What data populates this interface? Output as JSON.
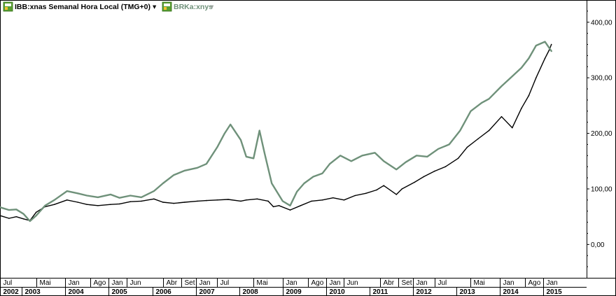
{
  "legend": {
    "primary": {
      "label": "IBB:xnas Semanal Hora Local (TMG+0)",
      "color": "#000000",
      "icon": "instrument-icon",
      "dropdown": "▾"
    },
    "secondary": {
      "label": "BRKa:xnys",
      "color": "#6f917a",
      "icon": "instrument-icon",
      "dropdown": "▾"
    }
  },
  "chart_data": {
    "type": "line",
    "x_unit": "date",
    "xlim": [
      "2002-07-01",
      "2015-12-31"
    ],
    "ylim": [
      -60,
      440
    ],
    "y_ticks": [
      0,
      100,
      200,
      300,
      400
    ],
    "y_tick_labels": [
      "0,00",
      "100,00",
      "200,00",
      "300,00",
      "400,00"
    ],
    "grid": false,
    "legend_position": "top-left",
    "x_month_labels": [
      {
        "label": "Jul",
        "date": "2002-07-01"
      },
      {
        "label": "Mai",
        "date": "2003-05-01"
      },
      {
        "label": "Jan",
        "date": "2004-01-01"
      },
      {
        "label": "Ago",
        "date": "2004-08-01"
      },
      {
        "label": "Jan",
        "date": "2005-01-01"
      },
      {
        "label": "Jun",
        "date": "2005-06-01"
      },
      {
        "label": "Abr",
        "date": "2006-04-01"
      },
      {
        "label": "Set",
        "date": "2006-09-01"
      },
      {
        "label": "Jan",
        "date": "2007-01-01"
      },
      {
        "label": "Jul",
        "date": "2007-07-01"
      },
      {
        "label": "Mai",
        "date": "2008-05-01"
      },
      {
        "label": "Jan",
        "date": "2009-01-01"
      },
      {
        "label": "Ago",
        "date": "2009-08-01"
      },
      {
        "label": "Jan",
        "date": "2010-01-01"
      },
      {
        "label": "Jun",
        "date": "2010-06-01"
      },
      {
        "label": "Abr",
        "date": "2011-04-01"
      },
      {
        "label": "Set",
        "date": "2011-09-01"
      },
      {
        "label": "Jan",
        "date": "2012-01-01"
      },
      {
        "label": "Jul",
        "date": "2012-07-01"
      },
      {
        "label": "Mai",
        "date": "2013-05-01"
      },
      {
        "label": "Jan",
        "date": "2014-01-01"
      },
      {
        "label": "Ago",
        "date": "2014-08-01"
      },
      {
        "label": "Jan",
        "date": "2015-01-01"
      }
    ],
    "x_year_labels": [
      {
        "label": "2002",
        "date": "2002-07-01"
      },
      {
        "label": "2003",
        "date": "2003-01-01"
      },
      {
        "label": "2004",
        "date": "2004-01-01"
      },
      {
        "label": "2005",
        "date": "2005-01-01"
      },
      {
        "label": "2006",
        "date": "2006-01-01"
      },
      {
        "label": "2007",
        "date": "2007-01-01"
      },
      {
        "label": "2008",
        "date": "2008-01-01"
      },
      {
        "label": "2009",
        "date": "2009-01-01"
      },
      {
        "label": "2010",
        "date": "2010-01-01"
      },
      {
        "label": "2011",
        "date": "2011-01-01"
      },
      {
        "label": "2012",
        "date": "2012-01-01"
      },
      {
        "label": "2013",
        "date": "2013-01-01"
      },
      {
        "label": "2014",
        "date": "2014-01-01"
      },
      {
        "label": "2015",
        "date": "2015-01-01"
      }
    ],
    "series": [
      {
        "name": "IBB:xnas Semanal Hora Local (TMG+0)",
        "color": "#000000",
        "points": [
          [
            "2002-07-01",
            52
          ],
          [
            "2002-09-15",
            47
          ],
          [
            "2002-11-15",
            50
          ],
          [
            "2003-01-15",
            46
          ],
          [
            "2003-03-10",
            43
          ],
          [
            "2003-05-01",
            58
          ],
          [
            "2003-07-15",
            68
          ],
          [
            "2003-10-01",
            72
          ],
          [
            "2004-01-15",
            80
          ],
          [
            "2004-04-15",
            76
          ],
          [
            "2004-07-01",
            72
          ],
          [
            "2004-10-01",
            70
          ],
          [
            "2005-01-15",
            72
          ],
          [
            "2005-04-01",
            73
          ],
          [
            "2005-07-01",
            77
          ],
          [
            "2005-10-01",
            78
          ],
          [
            "2006-01-15",
            82
          ],
          [
            "2006-04-01",
            76
          ],
          [
            "2006-07-01",
            74
          ],
          [
            "2006-10-01",
            76
          ],
          [
            "2007-01-15",
            78
          ],
          [
            "2007-04-01",
            79
          ],
          [
            "2007-07-01",
            80
          ],
          [
            "2007-10-01",
            81
          ],
          [
            "2008-01-15",
            78
          ],
          [
            "2008-03-01",
            80
          ],
          [
            "2008-06-01",
            82
          ],
          [
            "2008-09-01",
            78
          ],
          [
            "2008-10-15",
            68
          ],
          [
            "2008-12-01",
            70
          ],
          [
            "2009-03-05",
            62
          ],
          [
            "2009-06-01",
            70
          ],
          [
            "2009-09-01",
            78
          ],
          [
            "2009-12-01",
            80
          ],
          [
            "2010-03-01",
            84
          ],
          [
            "2010-06-01",
            80
          ],
          [
            "2010-09-01",
            88
          ],
          [
            "2010-12-01",
            92
          ],
          [
            "2011-03-01",
            98
          ],
          [
            "2011-05-01",
            106
          ],
          [
            "2011-08-15",
            90
          ],
          [
            "2011-10-01",
            100
          ],
          [
            "2012-01-15",
            112
          ],
          [
            "2012-04-01",
            122
          ],
          [
            "2012-07-01",
            132
          ],
          [
            "2012-10-01",
            140
          ],
          [
            "2013-01-15",
            155
          ],
          [
            "2013-04-01",
            175
          ],
          [
            "2013-07-01",
            190
          ],
          [
            "2013-10-01",
            205
          ],
          [
            "2014-01-15",
            230
          ],
          [
            "2014-04-15",
            210
          ],
          [
            "2014-07-01",
            245
          ],
          [
            "2014-09-01",
            268
          ],
          [
            "2014-11-01",
            300
          ],
          [
            "2015-01-15",
            335
          ],
          [
            "2015-02-20",
            350
          ],
          [
            "2015-03-10",
            360
          ]
        ]
      },
      {
        "name": "BRKa:xnys",
        "color": "#6f917a",
        "points": [
          [
            "2002-07-01",
            67
          ],
          [
            "2002-09-15",
            62
          ],
          [
            "2002-11-15",
            63
          ],
          [
            "2003-01-15",
            55
          ],
          [
            "2003-03-10",
            42
          ],
          [
            "2003-05-01",
            52
          ],
          [
            "2003-07-15",
            70
          ],
          [
            "2003-10-01",
            80
          ],
          [
            "2004-01-15",
            96
          ],
          [
            "2004-04-15",
            92
          ],
          [
            "2004-07-01",
            88
          ],
          [
            "2004-10-01",
            85
          ],
          [
            "2005-01-15",
            90
          ],
          [
            "2005-04-01",
            84
          ],
          [
            "2005-07-01",
            88
          ],
          [
            "2005-10-01",
            85
          ],
          [
            "2006-01-15",
            96
          ],
          [
            "2006-04-01",
            110
          ],
          [
            "2006-07-01",
            125
          ],
          [
            "2006-10-01",
            133
          ],
          [
            "2007-01-15",
            138
          ],
          [
            "2007-04-01",
            145
          ],
          [
            "2007-07-01",
            175
          ],
          [
            "2007-09-01",
            200
          ],
          [
            "2007-10-20",
            216
          ],
          [
            "2008-01-15",
            188
          ],
          [
            "2008-03-01",
            158
          ],
          [
            "2008-05-01",
            155
          ],
          [
            "2008-06-20",
            205
          ],
          [
            "2008-08-01",
            165
          ],
          [
            "2008-10-01",
            110
          ],
          [
            "2009-01-01",
            78
          ],
          [
            "2009-03-05",
            70
          ],
          [
            "2009-05-01",
            95
          ],
          [
            "2009-07-01",
            110
          ],
          [
            "2009-09-15",
            122
          ],
          [
            "2009-12-01",
            128
          ],
          [
            "2010-02-01",
            145
          ],
          [
            "2010-05-01",
            160
          ],
          [
            "2010-08-01",
            150
          ],
          [
            "2010-11-01",
            160
          ],
          [
            "2011-02-15",
            165
          ],
          [
            "2011-05-01",
            150
          ],
          [
            "2011-08-15",
            135
          ],
          [
            "2011-11-01",
            148
          ],
          [
            "2012-02-01",
            160
          ],
          [
            "2012-05-01",
            158
          ],
          [
            "2012-08-01",
            172
          ],
          [
            "2012-11-01",
            180
          ],
          [
            "2013-02-01",
            205
          ],
          [
            "2013-05-01",
            240
          ],
          [
            "2013-08-01",
            255
          ],
          [
            "2013-10-01",
            262
          ],
          [
            "2014-01-15",
            285
          ],
          [
            "2014-04-01",
            300
          ],
          [
            "2014-07-01",
            318
          ],
          [
            "2014-09-01",
            335
          ],
          [
            "2014-11-01",
            358
          ],
          [
            "2015-01-15",
            365
          ],
          [
            "2015-03-10",
            348
          ]
        ]
      }
    ]
  }
}
